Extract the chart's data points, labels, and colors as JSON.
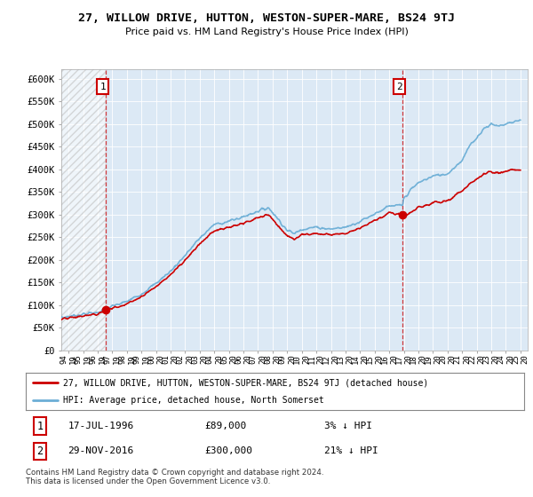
{
  "title": "27, WILLOW DRIVE, HUTTON, WESTON-SUPER-MARE, BS24 9TJ",
  "subtitle": "Price paid vs. HM Land Registry's House Price Index (HPI)",
  "ylim": [
    0,
    620000
  ],
  "yticks": [
    0,
    50000,
    100000,
    150000,
    200000,
    250000,
    300000,
    350000,
    400000,
    450000,
    500000,
    550000,
    600000
  ],
  "ytick_labels": [
    "£0",
    "£50K",
    "£100K",
    "£150K",
    "£200K",
    "£250K",
    "£300K",
    "£350K",
    "£400K",
    "£450K",
    "£500K",
    "£550K",
    "£600K"
  ],
  "plot_bg_color": "#dce9f5",
  "hpi_color": "#6baed6",
  "price_color": "#cc0000",
  "dot_color": "#cc0000",
  "sale1_date": 1996.54,
  "sale1_price": 89000,
  "sale1_label": "1",
  "sale1_year_label": "17-JUL-1996",
  "sale1_info": "£89,000",
  "sale1_pct": "3% ↓ HPI",
  "sale2_date": 2016.91,
  "sale2_price": 300000,
  "sale2_label": "2",
  "sale2_year_label": "29-NOV-2016",
  "sale2_info": "£300,000",
  "sale2_pct": "21% ↓ HPI",
  "legend_label1": "27, WILLOW DRIVE, HUTTON, WESTON-SUPER-MARE, BS24 9TJ (detached house)",
  "legend_label2": "HPI: Average price, detached house, North Somerset",
  "footer": "Contains HM Land Registry data © Crown copyright and database right 2024.\nThis data is licensed under the Open Government Licence v3.0.",
  "xmin": 1993.5,
  "xmax": 2025.5,
  "hpi_control_points": [
    [
      1993.5,
      72000
    ],
    [
      1994.0,
      75000
    ],
    [
      1995.0,
      80000
    ],
    [
      1996.0,
      84000
    ],
    [
      1996.54,
      91000
    ],
    [
      1997.0,
      97000
    ],
    [
      1998.0,
      108000
    ],
    [
      1999.0,
      125000
    ],
    [
      2000.0,
      148000
    ],
    [
      2001.0,
      175000
    ],
    [
      2002.0,
      210000
    ],
    [
      2003.0,
      248000
    ],
    [
      2004.0,
      278000
    ],
    [
      2005.0,
      285000
    ],
    [
      2006.0,
      295000
    ],
    [
      2007.0,
      308000
    ],
    [
      2007.7,
      315000
    ],
    [
      2008.0,
      305000
    ],
    [
      2008.5,
      285000
    ],
    [
      2009.0,
      265000
    ],
    [
      2009.5,
      258000
    ],
    [
      2010.0,
      268000
    ],
    [
      2011.0,
      272000
    ],
    [
      2012.0,
      268000
    ],
    [
      2013.0,
      272000
    ],
    [
      2014.0,
      285000
    ],
    [
      2015.0,
      302000
    ],
    [
      2016.0,
      318000
    ],
    [
      2016.91,
      320000
    ],
    [
      2017.0,
      335000
    ],
    [
      2017.5,
      355000
    ],
    [
      2018.0,
      370000
    ],
    [
      2019.0,
      385000
    ],
    [
      2020.0,
      390000
    ],
    [
      2021.0,
      420000
    ],
    [
      2021.5,
      450000
    ],
    [
      2022.0,
      470000
    ],
    [
      2022.5,
      490000
    ],
    [
      2023.0,
      500000
    ],
    [
      2023.5,
      495000
    ],
    [
      2024.0,
      500000
    ],
    [
      2024.5,
      505000
    ],
    [
      2025.0,
      508000
    ]
  ],
  "prop_control_points": [
    [
      1993.5,
      68000
    ],
    [
      1994.0,
      71000
    ],
    [
      1995.0,
      76000
    ],
    [
      1996.0,
      80000
    ],
    [
      1996.54,
      89000
    ],
    [
      1997.0,
      93000
    ],
    [
      1998.0,
      103000
    ],
    [
      1999.0,
      119000
    ],
    [
      2000.0,
      141000
    ],
    [
      2001.0,
      167000
    ],
    [
      2002.0,
      200000
    ],
    [
      2003.0,
      236000
    ],
    [
      2004.0,
      264000
    ],
    [
      2005.0,
      271000
    ],
    [
      2006.0,
      280000
    ],
    [
      2007.0,
      293000
    ],
    [
      2007.7,
      300000
    ],
    [
      2008.0,
      290000
    ],
    [
      2008.5,
      271000
    ],
    [
      2009.0,
      252000
    ],
    [
      2009.5,
      245000
    ],
    [
      2010.0,
      255000
    ],
    [
      2011.0,
      259000
    ],
    [
      2012.0,
      255000
    ],
    [
      2013.0,
      259000
    ],
    [
      2014.0,
      271000
    ],
    [
      2015.0,
      287000
    ],
    [
      2016.0,
      303000
    ],
    [
      2016.91,
      300000
    ],
    [
      2017.0,
      295000
    ],
    [
      2017.5,
      305000
    ],
    [
      2018.0,
      315000
    ],
    [
      2019.0,
      325000
    ],
    [
      2020.0,
      330000
    ],
    [
      2021.0,
      352000
    ],
    [
      2021.5,
      368000
    ],
    [
      2022.0,
      378000
    ],
    [
      2022.5,
      388000
    ],
    [
      2023.0,
      395000
    ],
    [
      2023.5,
      390000
    ],
    [
      2024.0,
      395000
    ],
    [
      2024.5,
      398000
    ],
    [
      2025.0,
      400000
    ]
  ]
}
